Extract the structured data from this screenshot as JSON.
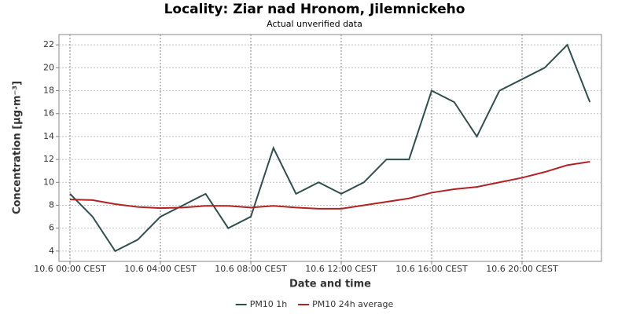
{
  "chart_data": {
    "type": "line",
    "title": "Locality: Ziar nad Hronom, Jilemnickeho",
    "subtitle": "Actual unverified data",
    "x_label": "Date and time",
    "y_label": "Concentration [µg·m⁻³]",
    "categories": [
      "10.6 00:00 CEST",
      null,
      null,
      null,
      "10.6 04:00 CEST",
      null,
      null,
      null,
      "10.6 08:00 CEST",
      null,
      null,
      null,
      "10.6 12:00 CEST",
      null,
      null,
      null,
      "10.6 16:00 CEST",
      null,
      null,
      null,
      "10.6 20:00 CEST",
      null,
      null,
      null
    ],
    "series": [
      {
        "name": "PM10 1h",
        "color": "#2f4f4f",
        "values": [
          9,
          7,
          4,
          5,
          7,
          8,
          9,
          6,
          7,
          13,
          9,
          10,
          9,
          10,
          12,
          12,
          18,
          17,
          14,
          18,
          19,
          20,
          22,
          17
        ]
      },
      {
        "name": "PM10 24h average",
        "color": "#b22222",
        "values": [
          8.5,
          8.45,
          8.1,
          7.85,
          7.75,
          7.8,
          7.95,
          7.95,
          7.8,
          7.95,
          7.8,
          7.7,
          7.7,
          8.0,
          8.3,
          8.6,
          9.1,
          9.4,
          9.6,
          10.0,
          10.4,
          10.9,
          11.5,
          11.8
        ]
      }
    ],
    "ylim": [
      3.1,
      22.9
    ],
    "yticks": [
      4,
      6,
      8,
      10,
      12,
      14,
      16,
      18,
      20,
      22
    ],
    "grid": true,
    "legend": "bottom"
  }
}
